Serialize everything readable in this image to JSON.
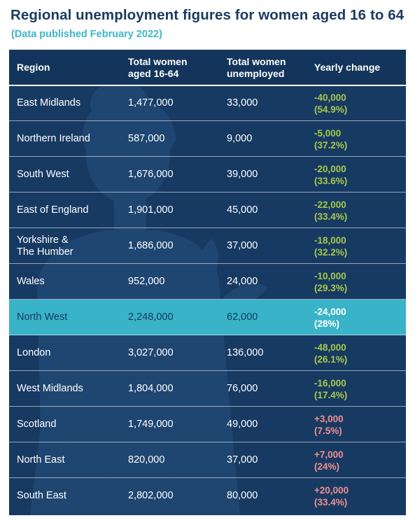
{
  "title": "Regional unemployment figures for women aged 16 to 64",
  "subtitle": "(Data published February 2022)",
  "colors": {
    "background": "#173a63",
    "header": "#13355b",
    "highlight_row": "#38b3c7",
    "title": "#1b3a5f",
    "subtitle": "#3cb6c8",
    "negative_change": "#a6c94a",
    "positive_change": "#ef8f8c"
  },
  "chart_data": {
    "type": "table",
    "title": "Regional unemployment figures for women aged 16 to 64",
    "subtitle": "(Data published February 2022)",
    "columns": [
      "Region",
      "Total women\naged 16-64",
      "Total women\nunemployed",
      "Yearly change"
    ],
    "highlighted_region": "North West",
    "rows": [
      {
        "region": "East Midlands",
        "total": "1,477,000",
        "unemployed": "33,000",
        "change": "-40,000\n(54.9%)",
        "direction": "down"
      },
      {
        "region": "Northern Ireland",
        "total": "587,000",
        "unemployed": "9,000",
        "change": "-5,000\n(37.2%)",
        "direction": "down"
      },
      {
        "region": "South West",
        "total": "1,676,000",
        "unemployed": "39,000",
        "change": "-20,000\n(33.6%)",
        "direction": "down"
      },
      {
        "region": "East of England",
        "total": "1,901,000",
        "unemployed": "45,000",
        "change": "-22,000\n(33.4%)",
        "direction": "down"
      },
      {
        "region": "Yorkshire &\nThe Humber",
        "total": "1,686,000",
        "unemployed": "37,000",
        "change": "-18,000\n(32.2%)",
        "direction": "down"
      },
      {
        "region": "Wales",
        "total": "952,000",
        "unemployed": "24,000",
        "change": "-10,000\n(29.3%)",
        "direction": "down"
      },
      {
        "region": "North West",
        "total": "2,248,000",
        "unemployed": "62,000",
        "change": "-24,000\n(28%)",
        "direction": "down"
      },
      {
        "region": "London",
        "total": "3,027,000",
        "unemployed": "136,000",
        "change": "-48,000\n(26.1%)",
        "direction": "down"
      },
      {
        "region": "West Midlands",
        "total": "1,804,000",
        "unemployed": "76,000",
        "change": "-16,000\n(17.4%)",
        "direction": "down"
      },
      {
        "region": "Scotland",
        "total": "1,749,000",
        "unemployed": "49,000",
        "change": "+3,000\n(7.5%)",
        "direction": "up"
      },
      {
        "region": "North East",
        "total": "820,000",
        "unemployed": "37,000",
        "change": "+7,000\n(24%)",
        "direction": "up"
      },
      {
        "region": "South East",
        "total": "2,802,000",
        "unemployed": "80,000",
        "change": "+20,000\n(33.4%)",
        "direction": "up"
      }
    ]
  }
}
